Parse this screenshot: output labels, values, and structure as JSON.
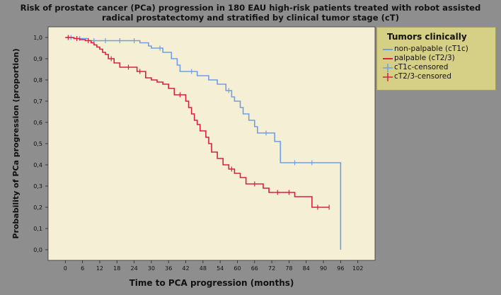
{
  "title_line1": "Risk of prostate cancer (PCa) progression in 180 EAU high-risk patients treated with robot assisted",
  "title_line2": "radical prostatectomy and stratified by clinical tumor stage (cT)",
  "legend": {
    "title": "Tumors clinically",
    "items": [
      {
        "label": "non-palpable (cT1c)",
        "color": "#6f9fe6",
        "kind": "line"
      },
      {
        "label": "palpable (cT2/3)",
        "color": "#d9203f",
        "kind": "line"
      },
      {
        "label": "cT1c-censored",
        "color": "#6f9fe6",
        "kind": "plus"
      },
      {
        "label": "cT2/3-censored",
        "color": "#d9203f",
        "kind": "plus"
      }
    ]
  },
  "colors": {
    "plot_bg": "#f5efd6",
    "page_bg": "#8e8e8e",
    "legend_bg": "#d6cf86"
  },
  "chart_data": {
    "type": "line",
    "xlabel": "Time to PCA progression (months)",
    "ylabel": "Probability of PCa progression (proportion)",
    "xlim": [
      -6,
      108
    ],
    "ylim": [
      -0.05,
      1.05
    ],
    "xticks": [
      "0",
      "6",
      "12",
      "18",
      "24",
      "30",
      "36",
      "42",
      "48",
      "54",
      "60",
      "66",
      "72",
      "78",
      "84",
      "90",
      "96",
      "102"
    ],
    "yticks": [
      "0,0",
      "0,1",
      "0,2",
      "0,3",
      "0,4",
      "0,5",
      "0,6",
      "0,7",
      "0,8",
      "0,9",
      "1,0"
    ],
    "grid": false,
    "legend_position": "right",
    "series": [
      {
        "name": "non-palpable (cT1c)",
        "color": "#6f9fe6",
        "steps": [
          [
            0,
            1.0
          ],
          [
            3,
            0.995
          ],
          [
            8,
            0.985
          ],
          [
            26,
            0.975
          ],
          [
            29,
            0.96
          ],
          [
            30,
            0.95
          ],
          [
            34,
            0.93
          ],
          [
            37,
            0.9
          ],
          [
            39,
            0.87
          ],
          [
            40,
            0.84
          ],
          [
            46,
            0.82
          ],
          [
            50,
            0.8
          ],
          [
            53,
            0.78
          ],
          [
            56,
            0.75
          ],
          [
            58,
            0.72
          ],
          [
            59,
            0.7
          ],
          [
            61,
            0.67
          ],
          [
            62,
            0.64
          ],
          [
            64,
            0.61
          ],
          [
            66,
            0.58
          ],
          [
            67,
            0.55
          ],
          [
            73,
            0.51
          ],
          [
            75,
            0.41
          ],
          [
            96,
            0.0
          ]
        ],
        "end_x": 96,
        "censored": [
          [
            2,
            1.0
          ],
          [
            5,
            0.995
          ],
          [
            10,
            0.985
          ],
          [
            14,
            0.985
          ],
          [
            19,
            0.985
          ],
          [
            24,
            0.985
          ],
          [
            33,
            0.95
          ],
          [
            44,
            0.84
          ],
          [
            57,
            0.75
          ],
          [
            70,
            0.55
          ],
          [
            80,
            0.41
          ],
          [
            86,
            0.41
          ]
        ]
      },
      {
        "name": "palpable (cT2/3)",
        "color": "#d9203f",
        "steps": [
          [
            0,
            1.0
          ],
          [
            3,
            0.995
          ],
          [
            5,
            0.99
          ],
          [
            7,
            0.985
          ],
          [
            9,
            0.975
          ],
          [
            10,
            0.965
          ],
          [
            11,
            0.955
          ],
          [
            12,
            0.945
          ],
          [
            13,
            0.93
          ],
          [
            14,
            0.92
          ],
          [
            15,
            0.9
          ],
          [
            17,
            0.88
          ],
          [
            19,
            0.86
          ],
          [
            25,
            0.84
          ],
          [
            28,
            0.81
          ],
          [
            30,
            0.8
          ],
          [
            32,
            0.79
          ],
          [
            34,
            0.78
          ],
          [
            36,
            0.76
          ],
          [
            38,
            0.73
          ],
          [
            42,
            0.7
          ],
          [
            43,
            0.67
          ],
          [
            44,
            0.64
          ],
          [
            45,
            0.61
          ],
          [
            46,
            0.59
          ],
          [
            47,
            0.56
          ],
          [
            49,
            0.53
          ],
          [
            50,
            0.5
          ],
          [
            51,
            0.46
          ],
          [
            53,
            0.43
          ],
          [
            55,
            0.4
          ],
          [
            57,
            0.38
          ],
          [
            59,
            0.36
          ],
          [
            61,
            0.34
          ],
          [
            63,
            0.31
          ],
          [
            69,
            0.29
          ],
          [
            71,
            0.27
          ],
          [
            80,
            0.25
          ],
          [
            86,
            0.2
          ],
          [
            92,
            0.2
          ]
        ],
        "end_x": 92,
        "censored": [
          [
            1,
            1.0
          ],
          [
            4,
            0.995
          ],
          [
            8,
            0.985
          ],
          [
            16,
            0.9
          ],
          [
            22,
            0.86
          ],
          [
            26,
            0.84
          ],
          [
            40,
            0.73
          ],
          [
            58,
            0.38
          ],
          [
            66,
            0.31
          ],
          [
            74,
            0.27
          ],
          [
            78,
            0.27
          ],
          [
            88,
            0.2
          ],
          [
            92,
            0.2
          ]
        ]
      }
    ]
  }
}
